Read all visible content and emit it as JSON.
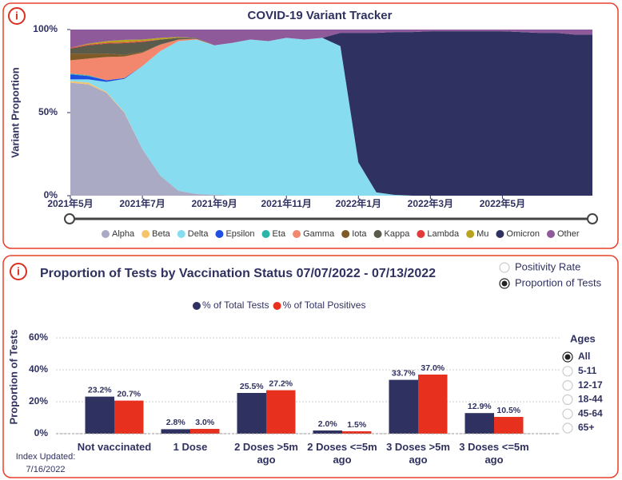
{
  "chart_data": [
    {
      "type": "stacked_area",
      "title": "COVID-19 Variant Tracker",
      "y_label": "Variant Proportion",
      "x": [
        0,
        0.5,
        1,
        1.5,
        2,
        2.5,
        3,
        3.5,
        4,
        4.5,
        5,
        5.5,
        6,
        6.5,
        7,
        7.5,
        8,
        8.5,
        9,
        9.5,
        10,
        10.5,
        11,
        11.5,
        12,
        12.5,
        13,
        13.5,
        14,
        14.5
      ],
      "xlim": [
        0,
        14.5
      ],
      "xticks": [
        {
          "value": 0,
          "label": "2021年5月"
        },
        {
          "value": 2,
          "label": "2021年7月"
        },
        {
          "value": 4,
          "label": "2021年9月"
        },
        {
          "value": 6,
          "label": "2021年11月"
        },
        {
          "value": 8,
          "label": "2022年1月"
        },
        {
          "value": 10,
          "label": "2022年3月"
        },
        {
          "value": 12,
          "label": "2022年5月"
        }
      ],
      "ylim": [
        0,
        100
      ],
      "yticks": [
        {
          "value": 0,
          "label": "0%"
        },
        {
          "value": 50,
          "label": "50%"
        },
        {
          "value": 100,
          "label": "100%"
        }
      ],
      "grid": false,
      "series": [
        {
          "name": "Alpha",
          "color": "#aaaac4",
          "values": [
            68,
            67,
            62,
            50,
            28,
            12,
            3,
            1,
            0.5,
            0,
            0,
            0,
            0,
            0,
            0,
            0,
            0,
            0,
            0,
            0,
            0,
            0,
            0,
            0,
            0,
            0,
            0,
            0,
            0,
            0
          ]
        },
        {
          "name": "Beta",
          "color": "#f5c46a",
          "values": [
            1,
            1,
            0.5,
            0.3,
            0,
            0,
            0,
            0,
            0,
            0,
            0,
            0,
            0,
            0,
            0,
            0,
            0,
            0,
            0,
            0,
            0,
            0,
            0,
            0,
            0,
            0,
            0,
            0,
            0,
            0
          ]
        },
        {
          "name": "Delta",
          "color": "#88dcef",
          "values": [
            1,
            2,
            6,
            20,
            50,
            75,
            90,
            93,
            90,
            92,
            94,
            93,
            95,
            94,
            95,
            90,
            20,
            2,
            0.5,
            0,
            0,
            0,
            0,
            0,
            0,
            0,
            0,
            0,
            0,
            0
          ]
        },
        {
          "name": "Epsilon",
          "color": "#1f4fe0",
          "values": [
            3,
            2,
            1,
            0.5,
            0,
            0,
            0,
            0,
            0,
            0,
            0,
            0,
            0,
            0,
            0,
            0,
            0,
            0,
            0,
            0,
            0,
            0,
            0,
            0,
            0,
            0,
            0,
            0,
            0,
            0
          ]
        },
        {
          "name": "Eta",
          "color": "#2bb5a8",
          "values": [
            0.5,
            0.5,
            0,
            0,
            0,
            0,
            0,
            0,
            0,
            0,
            0,
            0,
            0,
            0,
            0,
            0,
            0,
            0,
            0,
            0,
            0,
            0,
            0,
            0,
            0,
            0,
            0,
            0,
            0,
            0
          ]
        },
        {
          "name": "Gamma",
          "color": "#f2876e",
          "values": [
            8,
            10,
            14,
            13,
            8,
            4,
            1,
            0.5,
            0,
            0,
            0,
            0,
            0,
            0,
            0,
            0,
            0,
            0,
            0,
            0,
            0,
            0,
            0,
            0,
            0,
            0,
            0,
            0,
            0,
            0
          ]
        },
        {
          "name": "Iota",
          "color": "#7d5a26",
          "values": [
            4,
            3,
            2,
            1,
            0.5,
            0,
            0,
            0,
            0,
            0,
            0,
            0,
            0,
            0,
            0,
            0,
            0,
            0,
            0,
            0,
            0,
            0,
            0,
            0,
            0,
            0,
            0,
            0,
            0,
            0
          ]
        },
        {
          "name": "Kappa",
          "color": "#5b5b4b",
          "values": [
            3,
            5,
            6,
            7,
            6,
            3,
            1,
            0.5,
            0,
            0,
            0,
            0,
            0,
            0,
            0,
            0,
            0,
            0,
            0,
            0,
            0,
            0,
            0,
            0,
            0,
            0,
            0,
            0,
            0,
            0
          ]
        },
        {
          "name": "Lambda",
          "color": "#e03a3a",
          "values": [
            0.5,
            0.5,
            0.5,
            0.5,
            0.5,
            0,
            0,
            0,
            0,
            0,
            0,
            0,
            0,
            0,
            0,
            0,
            0,
            0,
            0,
            0,
            0,
            0,
            0,
            0,
            0,
            0,
            0,
            0,
            0,
            0
          ]
        },
        {
          "name": "Mu",
          "color": "#b8a21e",
          "values": [
            0,
            0.5,
            1,
            1.5,
            1,
            1,
            0.5,
            0,
            0,
            0,
            0,
            0,
            0,
            0,
            0,
            0,
            0,
            0,
            0,
            0,
            0,
            0,
            0,
            0,
            0,
            0,
            0,
            0,
            0,
            0
          ]
        },
        {
          "name": "Omicron",
          "color": "#2f3160",
          "values": [
            0,
            0,
            0,
            0,
            0,
            0,
            0,
            0,
            0,
            0,
            0,
            0,
            0,
            0,
            0,
            8,
            78,
            96,
            98,
            98.5,
            99,
            99,
            99,
            99,
            99,
            98.5,
            98,
            98,
            97,
            97
          ]
        },
        {
          "name": "Other",
          "color": "#8e5a9a",
          "values": [
            11,
            8.5,
            7,
            6.2,
            6,
            5,
            4.5,
            5,
            9.5,
            8,
            6,
            7,
            5,
            6,
            5,
            2,
            2,
            2,
            1.5,
            1.5,
            1,
            1,
            1,
            1,
            1,
            1.5,
            2,
            2,
            3,
            3
          ]
        }
      ]
    },
    {
      "type": "bar",
      "title": "Proportion of Tests by Vaccination Status 07/07/2022 - 07/13/2022",
      "y_label": "Proportion of Tests",
      "categories": [
        "Not vaccinated",
        "1 Dose",
        "2 Doses >5m ago",
        "2 Doses <=5m ago",
        "3 Doses >5m ago",
        "3 Doses <=5m ago"
      ],
      "ylim": [
        0,
        60
      ],
      "yticks": [
        {
          "value": 0,
          "label": "0%"
        },
        {
          "value": 20,
          "label": "20%"
        },
        {
          "value": 40,
          "label": "40%"
        },
        {
          "value": 60,
          "label": "60%"
        }
      ],
      "grid": true,
      "series": [
        {
          "name": "% of Total Tests",
          "color": "#2f3160",
          "values": [
            23.2,
            2.8,
            25.5,
            2.0,
            33.7,
            12.9
          ],
          "value_labels": [
            "23.2%",
            "2.8%",
            "25.5%",
            "2.0%",
            "33.7%",
            "12.9%"
          ]
        },
        {
          "name": "% of Total Positives",
          "color": "#e8301f",
          "values": [
            20.7,
            3.0,
            27.2,
            1.5,
            37.0,
            10.5
          ],
          "value_labels": [
            "20.7%",
            "3.0%",
            "27.2%",
            "1.5%",
            "37.0%",
            "10.5%"
          ]
        }
      ]
    }
  ],
  "info_icon": "i",
  "view_options": {
    "options": [
      "Positivity Rate",
      "Proportion of Tests"
    ],
    "selected": 1
  },
  "ages": {
    "title": "Ages",
    "options": [
      "All",
      "5-11",
      "12-17",
      "18-44",
      "45-64",
      "65+"
    ],
    "selected": 0
  },
  "index_updated": [
    "Index Updated:",
    "7/16/2022"
  ]
}
